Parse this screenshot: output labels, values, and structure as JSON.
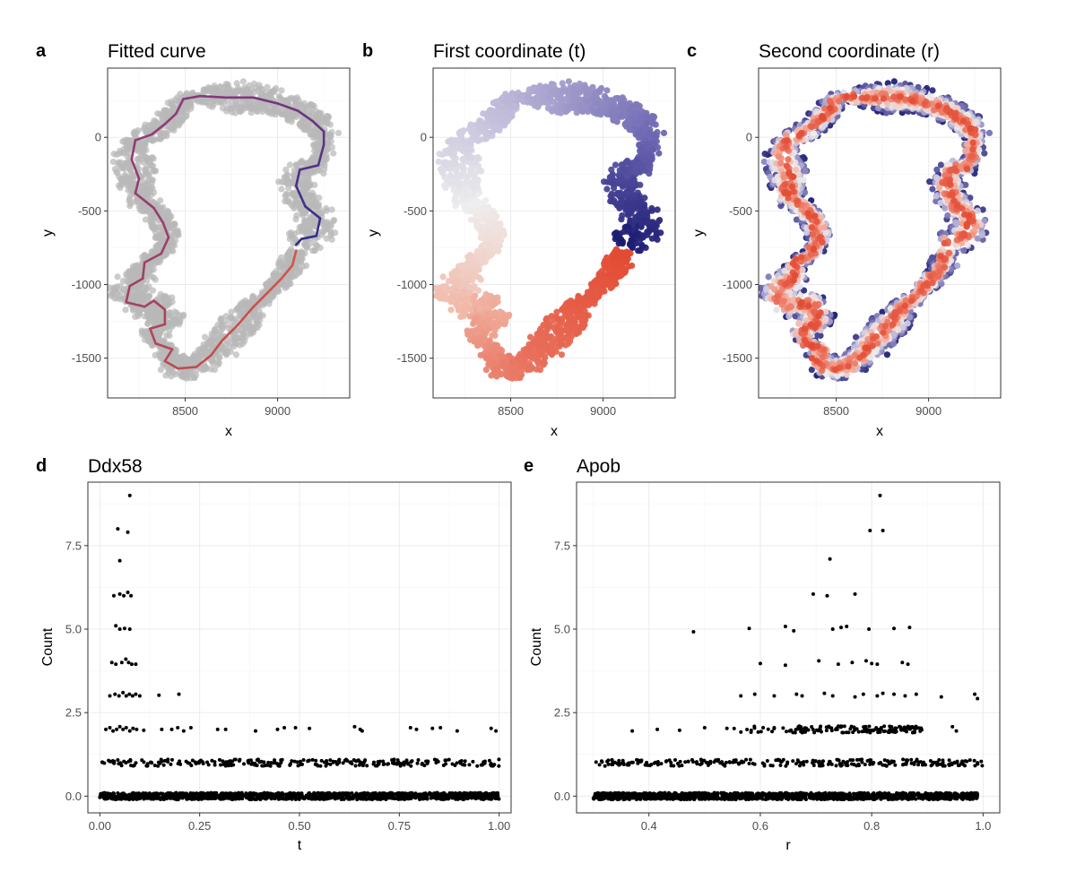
{
  "chart_data": [
    {
      "panel": "a",
      "type": "scatter",
      "title": "Fitted curve",
      "xlabel": "x",
      "ylabel": "y",
      "xlim": [
        8080,
        9390
      ],
      "ylim": [
        -1770,
        470
      ],
      "x_ticks": [
        8500,
        9000
      ],
      "y_ticks": [
        0,
        -500,
        -1000,
        -1500
      ],
      "x_tick_labels": [
        "8500",
        "9000"
      ],
      "y_tick_labels": [
        "0",
        "-500",
        "-1000",
        "-1500"
      ],
      "points_color": "#b9b9b9",
      "curve_colors": [
        "#2b2d8f",
        "#8e3a7a",
        "#a3435f",
        "#d95545"
      ],
      "curve": [
        {
          "x": 9100,
          "y": -730
        },
        {
          "x": 9130,
          "y": -690
        },
        {
          "x": 9210,
          "y": -670
        },
        {
          "x": 9230,
          "y": -550
        },
        {
          "x": 9150,
          "y": -470
        },
        {
          "x": 9100,
          "y": -330
        },
        {
          "x": 9120,
          "y": -220
        },
        {
          "x": 9220,
          "y": -190
        },
        {
          "x": 9250,
          "y": -50
        },
        {
          "x": 9250,
          "y": 40
        },
        {
          "x": 9190,
          "y": 110
        },
        {
          "x": 9110,
          "y": 180
        },
        {
          "x": 9000,
          "y": 230
        },
        {
          "x": 8870,
          "y": 270
        },
        {
          "x": 8720,
          "y": 270
        },
        {
          "x": 8580,
          "y": 280
        },
        {
          "x": 8490,
          "y": 260
        },
        {
          "x": 8450,
          "y": 160
        },
        {
          "x": 8390,
          "y": 90
        },
        {
          "x": 8320,
          "y": 20
        },
        {
          "x": 8230,
          "y": -20
        },
        {
          "x": 8210,
          "y": -150
        },
        {
          "x": 8250,
          "y": -280
        },
        {
          "x": 8230,
          "y": -380
        },
        {
          "x": 8330,
          "y": -480
        },
        {
          "x": 8380,
          "y": -580
        },
        {
          "x": 8410,
          "y": -680
        },
        {
          "x": 8370,
          "y": -790
        },
        {
          "x": 8280,
          "y": -850
        },
        {
          "x": 8270,
          "y": -960
        },
        {
          "x": 8200,
          "y": -1010
        },
        {
          "x": 8180,
          "y": -1120
        },
        {
          "x": 8280,
          "y": -1150
        },
        {
          "x": 8330,
          "y": -1110
        },
        {
          "x": 8390,
          "y": -1170
        },
        {
          "x": 8390,
          "y": -1270
        },
        {
          "x": 8310,
          "y": -1300
        },
        {
          "x": 8340,
          "y": -1400
        },
        {
          "x": 8430,
          "y": -1440
        },
        {
          "x": 8390,
          "y": -1520
        },
        {
          "x": 8460,
          "y": -1570
        },
        {
          "x": 8560,
          "y": -1560
        },
        {
          "x": 8640,
          "y": -1480
        },
        {
          "x": 8700,
          "y": -1380
        },
        {
          "x": 8780,
          "y": -1280
        },
        {
          "x": 8870,
          "y": -1150
        },
        {
          "x": 8950,
          "y": -1050
        },
        {
          "x": 9020,
          "y": -960
        },
        {
          "x": 9080,
          "y": -870
        },
        {
          "x": 9100,
          "y": -770
        }
      ]
    },
    {
      "panel": "b",
      "type": "scatter",
      "title": "First coordinate (t)",
      "xlabel": "x",
      "ylabel": "y",
      "xlim": [
        8080,
        9390
      ],
      "ylim": [
        -1770,
        470
      ],
      "x_ticks": [
        8500,
        9000
      ],
      "y_ticks": [
        0,
        -500,
        -1000,
        -1500
      ],
      "x_tick_labels": [
        "8500",
        "9000"
      ],
      "y_tick_labels": [
        "0",
        "-500",
        "-1000",
        "-1500"
      ],
      "color_scale": [
        "#191970",
        "#6a63b0",
        "#b9b4d6",
        "#eeeeee",
        "#f0b6a6",
        "#e8705b",
        "#e34a33"
      ],
      "color_variable": "t"
    },
    {
      "panel": "c",
      "type": "scatter",
      "title": "Second coordinate (r)",
      "xlabel": "x",
      "ylabel": "y",
      "xlim": [
        8080,
        9390
      ],
      "ylim": [
        -1770,
        470
      ],
      "x_ticks": [
        8500,
        9000
      ],
      "y_ticks": [
        0,
        -500,
        -1000,
        -1500
      ],
      "x_tick_labels": [
        "8500",
        "9000"
      ],
      "y_tick_labels": [
        "0",
        "-500",
        "-1000",
        "-1500"
      ],
      "color_scale": [
        "#191970",
        "#8f89c4",
        "#eeeeee",
        "#f2a08e",
        "#e34a33"
      ],
      "color_variable": "r"
    },
    {
      "panel": "d",
      "type": "scatter",
      "title": "Ddx58",
      "xlabel": "t",
      "ylabel": "Count",
      "xlim": [
        -0.03,
        1.03
      ],
      "ylim": [
        -0.5,
        9.4
      ],
      "x_ticks": [
        0,
        0.25,
        0.5,
        0.75,
        1
      ],
      "x_tick_labels": [
        "0.00",
        "0.25",
        "0.50",
        "0.75",
        "1.00"
      ],
      "y_ticks": [
        0,
        2.5,
        5,
        7.5
      ],
      "y_tick_labels": [
        "0.0",
        "2.5",
        "5.0",
        "7.5"
      ],
      "dense_bands": [
        {
          "count": 0,
          "x_from": 0.0,
          "x_to": 1.0,
          "density": "dense"
        },
        {
          "count": 1,
          "x_from": 0.0,
          "x_to": 1.0,
          "density": "medium"
        }
      ],
      "points": [
        {
          "x": 0.075,
          "y": 9
        },
        {
          "x": 0.045,
          "y": 8
        },
        {
          "x": 0.07,
          "y": 7.9
        },
        {
          "x": 0.05,
          "y": 7.05
        },
        {
          "x": 0.035,
          "y": 6
        },
        {
          "x": 0.05,
          "y": 6.05
        },
        {
          "x": 0.06,
          "y": 6
        },
        {
          "x": 0.07,
          "y": 6.1
        },
        {
          "x": 0.078,
          "y": 6
        },
        {
          "x": 0.04,
          "y": 5.1
        },
        {
          "x": 0.05,
          "y": 5
        },
        {
          "x": 0.062,
          "y": 5.02
        },
        {
          "x": 0.075,
          "y": 5
        },
        {
          "x": 0.03,
          "y": 4
        },
        {
          "x": 0.04,
          "y": 3.95
        },
        {
          "x": 0.055,
          "y": 4
        },
        {
          "x": 0.065,
          "y": 4.1
        },
        {
          "x": 0.072,
          "y": 4
        },
        {
          "x": 0.08,
          "y": 3.95
        },
        {
          "x": 0.09,
          "y": 3.95
        },
        {
          "x": 0.025,
          "y": 3
        },
        {
          "x": 0.038,
          "y": 3.05
        },
        {
          "x": 0.048,
          "y": 3
        },
        {
          "x": 0.058,
          "y": 3.1
        },
        {
          "x": 0.066,
          "y": 3
        },
        {
          "x": 0.074,
          "y": 3.05
        },
        {
          "x": 0.082,
          "y": 3
        },
        {
          "x": 0.09,
          "y": 3.05
        },
        {
          "x": 0.1,
          "y": 3
        },
        {
          "x": 0.148,
          "y": 3.02
        },
        {
          "x": 0.198,
          "y": 3.05
        },
        {
          "x": 0.015,
          "y": 2
        },
        {
          "x": 0.025,
          "y": 2.05
        },
        {
          "x": 0.033,
          "y": 1.95
        },
        {
          "x": 0.042,
          "y": 2
        },
        {
          "x": 0.05,
          "y": 2.08
        },
        {
          "x": 0.058,
          "y": 2
        },
        {
          "x": 0.066,
          "y": 2.05
        },
        {
          "x": 0.075,
          "y": 1.95
        },
        {
          "x": 0.083,
          "y": 2.03
        },
        {
          "x": 0.092,
          "y": 2
        },
        {
          "x": 0.11,
          "y": 1.97
        },
        {
          "x": 0.155,
          "y": 2
        },
        {
          "x": 0.18,
          "y": 2
        },
        {
          "x": 0.195,
          "y": 2.05
        },
        {
          "x": 0.21,
          "y": 1.95
        },
        {
          "x": 0.228,
          "y": 2.05
        },
        {
          "x": 0.295,
          "y": 2
        },
        {
          "x": 0.315,
          "y": 2
        },
        {
          "x": 0.39,
          "y": 1.95
        },
        {
          "x": 0.445,
          "y": 2
        },
        {
          "x": 0.462,
          "y": 2.05
        },
        {
          "x": 0.49,
          "y": 2.05
        },
        {
          "x": 0.525,
          "y": 2.03
        },
        {
          "x": 0.638,
          "y": 2.08
        },
        {
          "x": 0.652,
          "y": 2
        },
        {
          "x": 0.657,
          "y": 1.95
        },
        {
          "x": 0.778,
          "y": 2.05
        },
        {
          "x": 0.793,
          "y": 2
        },
        {
          "x": 0.833,
          "y": 2.03
        },
        {
          "x": 0.853,
          "y": 2.05
        },
        {
          "x": 0.895,
          "y": 1.95
        },
        {
          "x": 0.98,
          "y": 2.03
        },
        {
          "x": 0.992,
          "y": 1.95
        }
      ]
    },
    {
      "panel": "e",
      "type": "scatter",
      "title": "Apob",
      "xlabel": "r",
      "ylabel": "Count",
      "xlim": [
        0.27,
        1.03
      ],
      "ylim": [
        -0.5,
        9.4
      ],
      "x_ticks": [
        0.4,
        0.6,
        0.8,
        1.0
      ],
      "x_tick_labels": [
        "0.4",
        "0.6",
        "0.8",
        "1.0"
      ],
      "y_ticks": [
        0,
        2.5,
        5,
        7.5
      ],
      "y_tick_labels": [
        "0.0",
        "2.5",
        "5.0",
        "7.5"
      ],
      "dense_bands": [
        {
          "count": 0,
          "x_from": 0.3,
          "x_to": 0.99,
          "density": "dense"
        },
        {
          "count": 1,
          "x_from": 0.31,
          "x_to": 1.0,
          "density": "medium"
        },
        {
          "count": 2,
          "x_from": 0.55,
          "x_to": 0.89,
          "density": "light"
        }
      ],
      "points": [
        {
          "x": 0.815,
          "y": 9
        },
        {
          "x": 0.797,
          "y": 7.95
        },
        {
          "x": 0.82,
          "y": 7.95
        },
        {
          "x": 0.725,
          "y": 7.1
        },
        {
          "x": 0.695,
          "y": 6.05
        },
        {
          "x": 0.72,
          "y": 6
        },
        {
          "x": 0.77,
          "y": 6.05
        },
        {
          "x": 0.48,
          "y": 4.92
        },
        {
          "x": 0.58,
          "y": 5.02
        },
        {
          "x": 0.645,
          "y": 5.08
        },
        {
          "x": 0.66,
          "y": 4.95
        },
        {
          "x": 0.73,
          "y": 5
        },
        {
          "x": 0.745,
          "y": 5.05
        },
        {
          "x": 0.755,
          "y": 5.08
        },
        {
          "x": 0.795,
          "y": 5
        },
        {
          "x": 0.84,
          "y": 5.02
        },
        {
          "x": 0.868,
          "y": 5.05
        },
        {
          "x": 0.6,
          "y": 3.97
        },
        {
          "x": 0.645,
          "y": 3.92
        },
        {
          "x": 0.705,
          "y": 4.05
        },
        {
          "x": 0.74,
          "y": 3.95
        },
        {
          "x": 0.765,
          "y": 4
        },
        {
          "x": 0.79,
          "y": 4.05
        },
        {
          "x": 0.8,
          "y": 3.97
        },
        {
          "x": 0.81,
          "y": 3.95
        },
        {
          "x": 0.855,
          "y": 4
        },
        {
          "x": 0.865,
          "y": 3.95
        },
        {
          "x": 0.565,
          "y": 3
        },
        {
          "x": 0.59,
          "y": 3.05
        },
        {
          "x": 0.625,
          "y": 3
        },
        {
          "x": 0.665,
          "y": 3.05
        },
        {
          "x": 0.675,
          "y": 3
        },
        {
          "x": 0.715,
          "y": 3.08
        },
        {
          "x": 0.73,
          "y": 3
        },
        {
          "x": 0.77,
          "y": 2.97
        },
        {
          "x": 0.785,
          "y": 3.05
        },
        {
          "x": 0.81,
          "y": 3
        },
        {
          "x": 0.82,
          "y": 3.08
        },
        {
          "x": 0.84,
          "y": 3.05
        },
        {
          "x": 0.86,
          "y": 3
        },
        {
          "x": 0.88,
          "y": 3.05
        },
        {
          "x": 0.925,
          "y": 2.97
        },
        {
          "x": 0.985,
          "y": 3.05
        },
        {
          "x": 0.99,
          "y": 2.92
        },
        {
          "x": 0.37,
          "y": 1.95
        },
        {
          "x": 0.415,
          "y": 2
        },
        {
          "x": 0.455,
          "y": 1.97
        },
        {
          "x": 0.5,
          "y": 2.05
        },
        {
          "x": 0.54,
          "y": 2.03
        },
        {
          "x": 0.945,
          "y": 2.08
        },
        {
          "x": 0.952,
          "y": 1.95
        },
        {
          "x": 0.305,
          "y": 1.02
        },
        {
          "x": 0.315,
          "y": 1.05
        },
        {
          "x": 0.355,
          "y": 0.95
        },
        {
          "x": 0.99,
          "y": 1
        }
      ]
    }
  ],
  "panels_meta": {
    "letters": [
      "a",
      "b",
      "c",
      "d",
      "e"
    ]
  }
}
